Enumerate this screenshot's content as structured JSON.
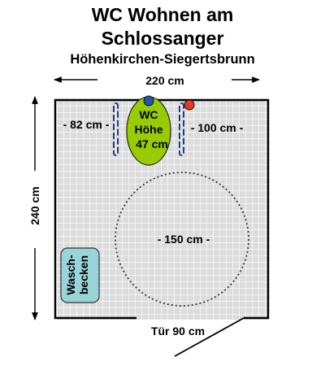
{
  "title": {
    "line1": "WC Wohnen am",
    "line2": "Schlossanger",
    "subtitle": "Höhenkirchen-Siegertsbrunn"
  },
  "dimensions": {
    "width": "220 cm",
    "height": "240 cm",
    "left_clearance": "- 82 cm -",
    "right_clearance": "- 100 cm -",
    "turning_circle": "- 150 cm -",
    "door": "Tür 90 cm"
  },
  "wc": {
    "line1": "WC",
    "line2": "Höhe",
    "line3": "47 cm"
  },
  "sink": {
    "line1": "Wasch-",
    "line2": "becken"
  },
  "colors": {
    "floor": "#dcdcdc",
    "wc_fill": "#99cc00",
    "sink_fill": "#99d4d9",
    "grab_bar": "#1f3a93",
    "flush_button": "#2255aa",
    "alarm_button": "#e83a1a"
  }
}
